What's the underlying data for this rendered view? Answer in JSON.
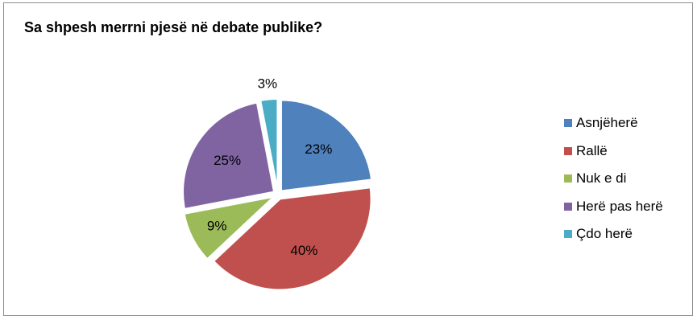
{
  "chart_data": {
    "type": "pie",
    "title": "Sa shpesh merrni pjesë në debate publike?",
    "categories": [
      "Asnjëherë",
      "Rallë",
      "Nuk e di",
      "Herë pas herë",
      "Çdo herë"
    ],
    "values": [
      23,
      40,
      9,
      25,
      3
    ],
    "value_labels": [
      "23%",
      "40%",
      "9%",
      "25%",
      "3%"
    ],
    "colors": [
      "#4f81bd",
      "#c0504d",
      "#9bbb59",
      "#8064a2",
      "#4bacc6"
    ],
    "exploded": true,
    "legend_position": "right"
  }
}
